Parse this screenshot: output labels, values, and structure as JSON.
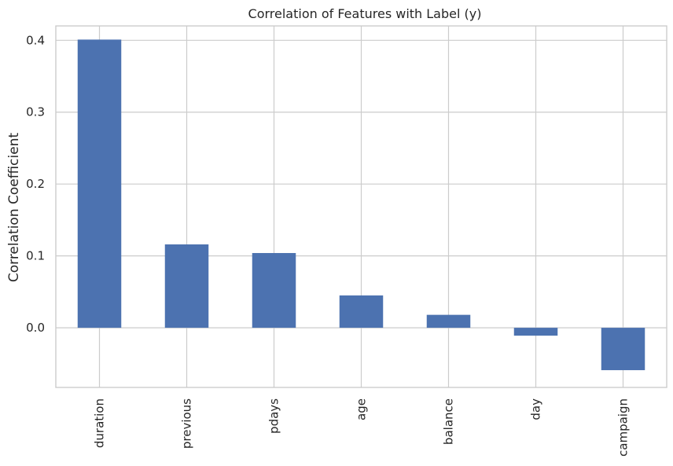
{
  "chart_data": {
    "type": "bar",
    "title": "Correlation of Features with Label (y)",
    "xlabel": "",
    "ylabel": "Correlation Coefficient",
    "categories": [
      "duration",
      "previous",
      "pdays",
      "age",
      "balance",
      "day",
      "campaign"
    ],
    "values": [
      0.401,
      0.116,
      0.104,
      0.045,
      0.018,
      -0.011,
      -0.059
    ],
    "ylim": [
      -0.083,
      0.42
    ],
    "yticks": [
      0.0,
      0.1,
      0.2,
      0.3,
      0.4
    ],
    "ytick_labels": [
      "0.0",
      "0.1",
      "0.2",
      "0.3",
      "0.4"
    ],
    "grid": true,
    "bar_color": "#4c72b0",
    "grid_color": "#cccccc"
  }
}
